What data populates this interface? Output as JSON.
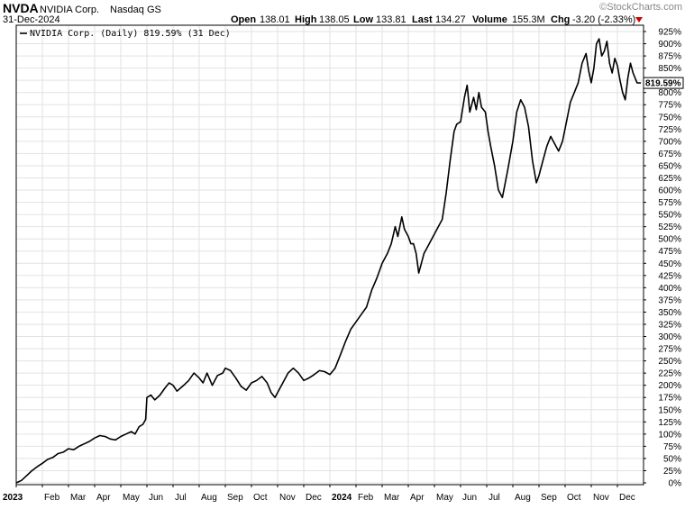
{
  "header": {
    "symbol": "NVDA",
    "company": "NVIDIA Corp.",
    "exchange": "Nasdaq GS",
    "date": "31-Dec-2024",
    "watermark": "©StockCharts.com",
    "open_label": "Open",
    "open_value": "138.01",
    "high_label": "High",
    "high_value": "138.05",
    "low_label": "Low",
    "low_value": "133.81",
    "last_label": "Last",
    "last_value": "134.27",
    "volume_label": "Volume",
    "volume_value": "155.3M",
    "chg_label": "Chg",
    "chg_value": "-3.20 (-2.33%)",
    "chg_color": "#cc0000"
  },
  "legend": {
    "text": "NVIDIA Corp. (Daily) 819.59% (31 Dec)"
  },
  "last_marker": {
    "label": "819.59%"
  },
  "chart_data": {
    "type": "line",
    "ylim": [
      0,
      925
    ],
    "y_ticks": [
      "0%",
      "25%",
      "50%",
      "75%",
      "100%",
      "125%",
      "150%",
      "175%",
      "200%",
      "225%",
      "250%",
      "275%",
      "300%",
      "325%",
      "350%",
      "375%",
      "400%",
      "425%",
      "450%",
      "475%",
      "500%",
      "525%",
      "550%",
      "575%",
      "600%",
      "625%",
      "650%",
      "675%",
      "700%",
      "725%",
      "750%",
      "775%",
      "800%",
      "825%",
      "850%",
      "875%",
      "900%",
      "925%"
    ],
    "x_labels": [
      {
        "label": "2023",
        "month": 0,
        "bold": true
      },
      {
        "label": "Feb",
        "month": 1
      },
      {
        "label": "Mar",
        "month": 2
      },
      {
        "label": "Apr",
        "month": 3
      },
      {
        "label": "May",
        "month": 4
      },
      {
        "label": "Jun",
        "month": 5
      },
      {
        "label": "Jul",
        "month": 6
      },
      {
        "label": "Aug",
        "month": 7
      },
      {
        "label": "Sep",
        "month": 8
      },
      {
        "label": "Oct",
        "month": 9
      },
      {
        "label": "Nov",
        "month": 10
      },
      {
        "label": "Dec",
        "month": 11
      },
      {
        "label": "2024",
        "month": 12,
        "bold": true
      },
      {
        "label": "Feb",
        "month": 13
      },
      {
        "label": "Mar",
        "month": 14
      },
      {
        "label": "Apr",
        "month": 15
      },
      {
        "label": "May",
        "month": 16
      },
      {
        "label": "Jun",
        "month": 17
      },
      {
        "label": "Jul",
        "month": 18
      },
      {
        "label": "Aug",
        "month": 19
      },
      {
        "label": "Sep",
        "month": 20
      },
      {
        "label": "Oct",
        "month": 21
      },
      {
        "label": "Nov",
        "month": 22
      },
      {
        "label": "Dec",
        "month": 23
      }
    ],
    "series": [
      {
        "color": "#000000",
        "points": [
          [
            0.0,
            0
          ],
          [
            0.2,
            5
          ],
          [
            0.4,
            15
          ],
          [
            0.6,
            25
          ],
          [
            0.8,
            33
          ],
          [
            1.0,
            40
          ],
          [
            1.2,
            48
          ],
          [
            1.4,
            52
          ],
          [
            1.6,
            60
          ],
          [
            1.8,
            63
          ],
          [
            2.0,
            70
          ],
          [
            2.2,
            68
          ],
          [
            2.4,
            75
          ],
          [
            2.6,
            80
          ],
          [
            2.8,
            85
          ],
          [
            3.0,
            92
          ],
          [
            3.2,
            97
          ],
          [
            3.4,
            95
          ],
          [
            3.6,
            90
          ],
          [
            3.8,
            88
          ],
          [
            4.0,
            95
          ],
          [
            4.2,
            100
          ],
          [
            4.4,
            105
          ],
          [
            4.55,
            100
          ],
          [
            4.7,
            115
          ],
          [
            4.85,
            120
          ],
          [
            4.95,
            130
          ],
          [
            5.0,
            175
          ],
          [
            5.15,
            180
          ],
          [
            5.3,
            170
          ],
          [
            5.5,
            180
          ],
          [
            5.7,
            195
          ],
          [
            5.85,
            205
          ],
          [
            6.0,
            200
          ],
          [
            6.15,
            188
          ],
          [
            6.3,
            195
          ],
          [
            6.45,
            202
          ],
          [
            6.6,
            210
          ],
          [
            6.8,
            225
          ],
          [
            7.0,
            215
          ],
          [
            7.15,
            205
          ],
          [
            7.3,
            225
          ],
          [
            7.5,
            200
          ],
          [
            7.7,
            220
          ],
          [
            7.9,
            225
          ],
          [
            8.0,
            235
          ],
          [
            8.2,
            230
          ],
          [
            8.4,
            215
          ],
          [
            8.6,
            198
          ],
          [
            8.8,
            190
          ],
          [
            9.0,
            205
          ],
          [
            9.2,
            210
          ],
          [
            9.4,
            218
          ],
          [
            9.6,
            205
          ],
          [
            9.75,
            185
          ],
          [
            9.9,
            175
          ],
          [
            10.0,
            185
          ],
          [
            10.2,
            205
          ],
          [
            10.4,
            225
          ],
          [
            10.6,
            235
          ],
          [
            10.8,
            225
          ],
          [
            11.0,
            210
          ],
          [
            11.2,
            215
          ],
          [
            11.4,
            222
          ],
          [
            11.6,
            230
          ],
          [
            11.8,
            228
          ],
          [
            12.0,
            222
          ],
          [
            12.2,
            235
          ],
          [
            12.4,
            262
          ],
          [
            12.6,
            290
          ],
          [
            12.8,
            315
          ],
          [
            13.0,
            330
          ],
          [
            13.2,
            345
          ],
          [
            13.4,
            360
          ],
          [
            13.6,
            395
          ],
          [
            13.8,
            420
          ],
          [
            14.0,
            450
          ],
          [
            14.2,
            470
          ],
          [
            14.35,
            490
          ],
          [
            14.5,
            525
          ],
          [
            14.6,
            505
          ],
          [
            14.75,
            545
          ],
          [
            14.85,
            520
          ],
          [
            15.0,
            505
          ],
          [
            15.1,
            490
          ],
          [
            15.2,
            490
          ],
          [
            15.3,
            470
          ],
          [
            15.4,
            430
          ],
          [
            15.5,
            450
          ],
          [
            15.6,
            470
          ],
          [
            15.8,
            490
          ],
          [
            16.0,
            510
          ],
          [
            16.15,
            525
          ],
          [
            16.3,
            540
          ],
          [
            16.45,
            595
          ],
          [
            16.6,
            660
          ],
          [
            16.75,
            720
          ],
          [
            16.85,
            735
          ],
          [
            17.0,
            740
          ],
          [
            17.15,
            790
          ],
          [
            17.25,
            815
          ],
          [
            17.35,
            760
          ],
          [
            17.5,
            790
          ],
          [
            17.6,
            765
          ],
          [
            17.7,
            800
          ],
          [
            17.8,
            770
          ],
          [
            17.95,
            760
          ],
          [
            18.05,
            720
          ],
          [
            18.15,
            690
          ],
          [
            18.3,
            650
          ],
          [
            18.45,
            600
          ],
          [
            18.6,
            585
          ],
          [
            18.8,
            640
          ],
          [
            19.0,
            700
          ],
          [
            19.15,
            760
          ],
          [
            19.3,
            785
          ],
          [
            19.45,
            770
          ],
          [
            19.6,
            730
          ],
          [
            19.75,
            660
          ],
          [
            19.9,
            615
          ],
          [
            20.0,
            630
          ],
          [
            20.15,
            660
          ],
          [
            20.3,
            690
          ],
          [
            20.45,
            710
          ],
          [
            20.6,
            695
          ],
          [
            20.75,
            680
          ],
          [
            20.9,
            700
          ],
          [
            21.05,
            740
          ],
          [
            21.2,
            780
          ],
          [
            21.35,
            800
          ],
          [
            21.5,
            820
          ],
          [
            21.65,
            860
          ],
          [
            21.8,
            880
          ],
          [
            21.9,
            845
          ],
          [
            22.0,
            820
          ],
          [
            22.1,
            850
          ],
          [
            22.2,
            900
          ],
          [
            22.3,
            910
          ],
          [
            22.4,
            875
          ],
          [
            22.5,
            885
          ],
          [
            22.6,
            905
          ],
          [
            22.7,
            860
          ],
          [
            22.8,
            840
          ],
          [
            22.9,
            870
          ],
          [
            23.0,
            855
          ],
          [
            23.1,
            825
          ],
          [
            23.2,
            800
          ],
          [
            23.3,
            785
          ],
          [
            23.4,
            830
          ],
          [
            23.5,
            860
          ],
          [
            23.6,
            840
          ],
          [
            23.75,
            820
          ],
          [
            23.9,
            819.59
          ]
        ]
      }
    ]
  }
}
